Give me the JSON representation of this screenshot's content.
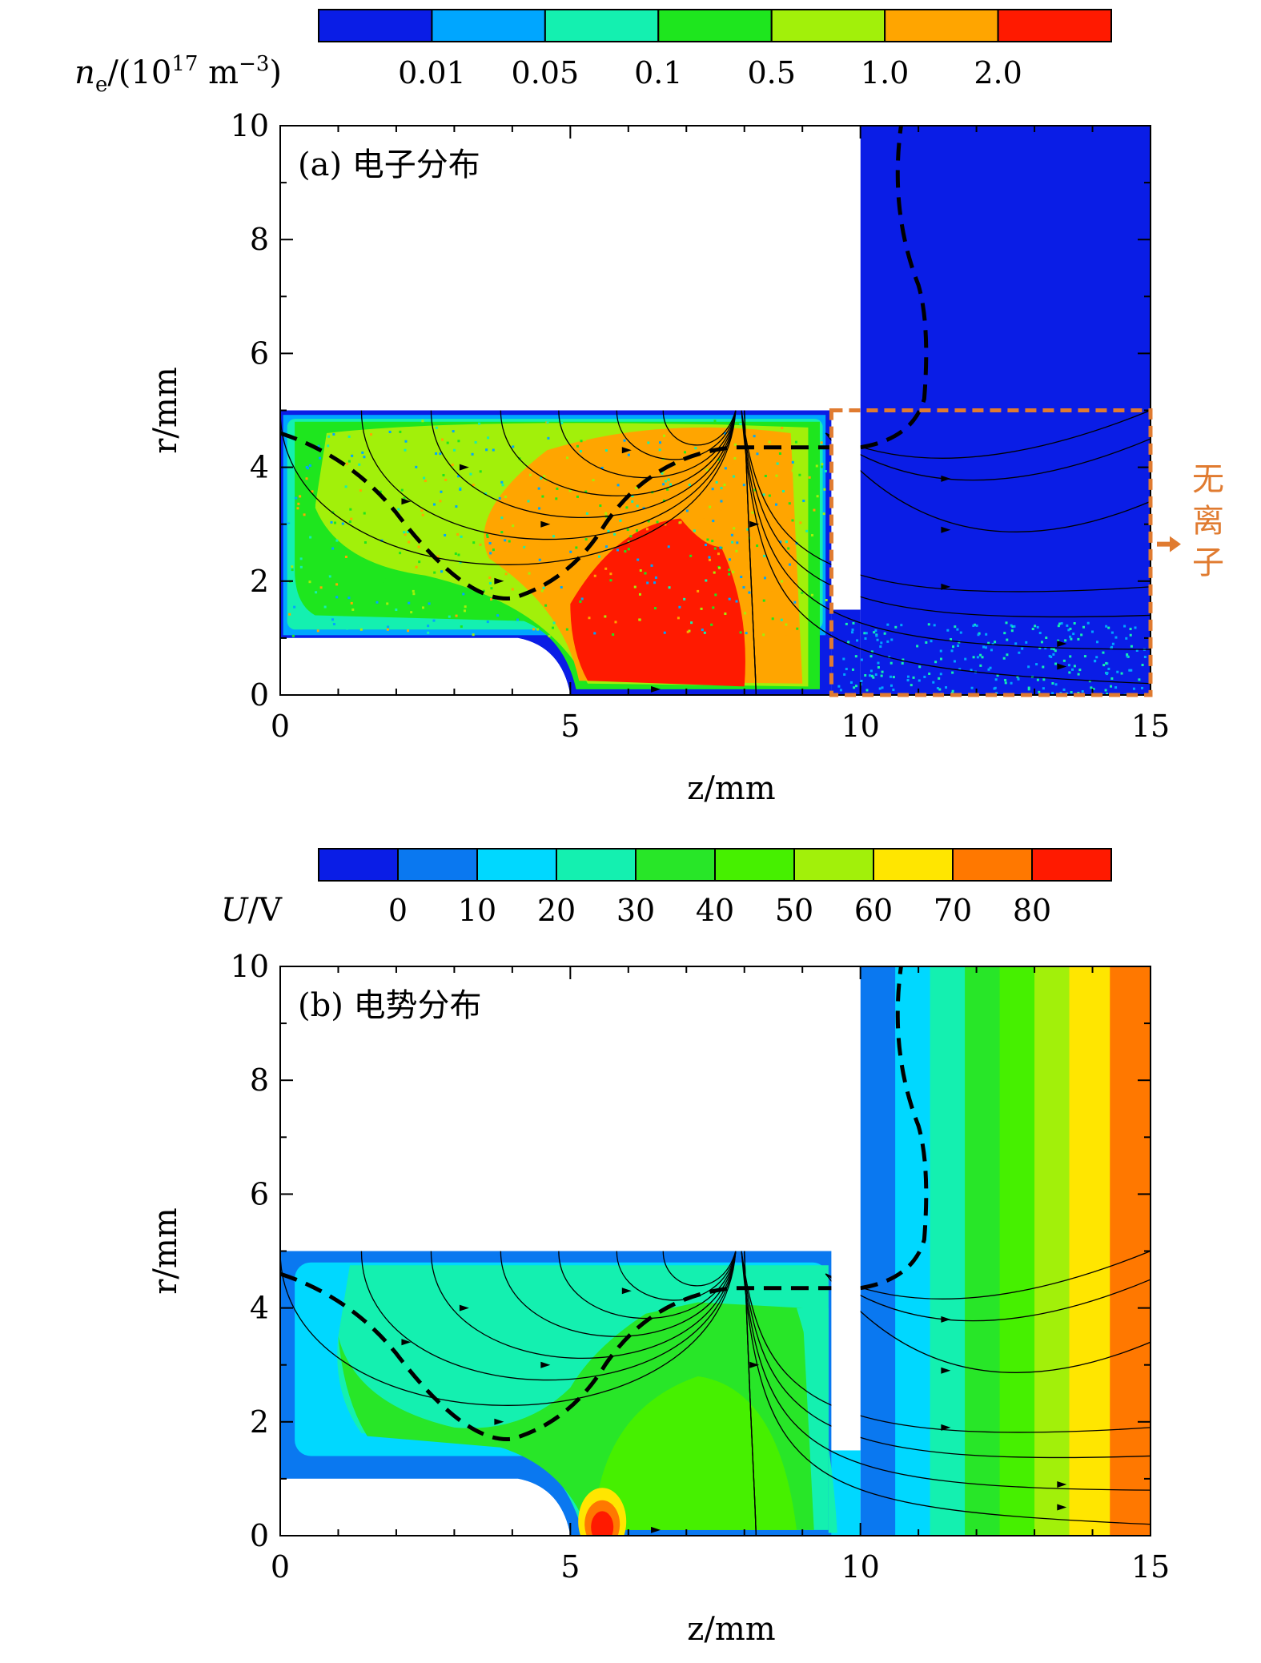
{
  "chart_data": [
    {
      "type": "heatmap",
      "panel_label": "(a) 电子分布",
      "xlabel": "z/mm",
      "ylabel": "r/mm",
      "xlim": [
        0,
        15
      ],
      "ylim": [
        0,
        10
      ],
      "x_ticks": [
        "0",
        "5",
        "10",
        "15"
      ],
      "y_ticks": [
        "0",
        "2",
        "4",
        "6",
        "8",
        "10"
      ],
      "colorbar": {
        "label": "ne/(10^17 m^-3)",
        "label_main": "n",
        "label_sub": "e",
        "label_mid": "/(10",
        "label_sup": "17",
        "label_unit": " m",
        "label_sup2": "−3",
        "label_end": ")",
        "ticks": [
          "0.01",
          "0.05",
          "0.1",
          "0.5",
          "1.0",
          "2.0"
        ],
        "colors": [
          "#0a1de6",
          "#00a6ff",
          "#14f0b0",
          "#1ee61e",
          "#a2f00a",
          "#ffa500",
          "#ff1a00"
        ]
      },
      "annotation": {
        "text": [
          "无",
          "离",
          "子"
        ],
        "region": {
          "z": [
            9.5,
            15
          ],
          "r": [
            0,
            5
          ]
        },
        "color": "#e07b30"
      },
      "regions": [
        {
          "name": "channel",
          "z": [
            0,
            9.5
          ],
          "r": [
            1,
            5
          ],
          "level": "0.5-1.0"
        },
        {
          "name": "core",
          "z": [
            5.2,
            8.0
          ],
          "r": [
            0,
            2.6
          ],
          "level": ">2.0"
        },
        {
          "name": "outer",
          "z": [
            10,
            15
          ],
          "r": [
            0,
            10
          ],
          "level": "<0.01"
        }
      ]
    },
    {
      "type": "heatmap",
      "panel_label": "(b) 电势分布",
      "xlabel": "z/mm",
      "ylabel": "r/mm",
      "xlim": [
        0,
        15
      ],
      "ylim": [
        0,
        10
      ],
      "x_ticks": [
        "0",
        "5",
        "10",
        "15"
      ],
      "y_ticks": [
        "0",
        "2",
        "4",
        "6",
        "8",
        "10"
      ],
      "colorbar": {
        "label": "U/V",
        "label_main": "U",
        "label_unit": "/V",
        "ticks": [
          "0",
          "10",
          "20",
          "30",
          "40",
          "50",
          "60",
          "70",
          "80"
        ],
        "colors": [
          "#0a1de6",
          "#0a78f0",
          "#00d8ff",
          "#14f0b0",
          "#28e628",
          "#46f000",
          "#a2f00a",
          "#ffe600",
          "#ff7800",
          "#ff1a00"
        ]
      },
      "contour_bands_z": [
        10,
        10.6,
        11.2,
        11.8,
        12.4,
        13.0,
        13.6,
        14.3,
        14.85,
        15
      ],
      "contour_band_levels": [
        "0-10",
        "10-20",
        "20-30",
        "30-40",
        "40-50",
        "50-60",
        "60-70",
        "70-80",
        ">80"
      ]
    }
  ]
}
